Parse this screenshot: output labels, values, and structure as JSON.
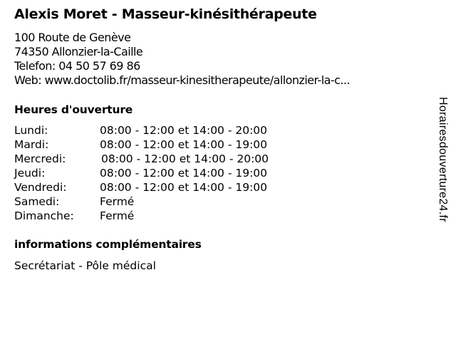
{
  "business": {
    "title": "Alexis Moret - Masseur-kinésithérapeute",
    "address_line1": "100 Route de Genève",
    "address_line2": "74350 Allonzier-la-Caille",
    "phone": "Telefon: 04 50 57 69 86",
    "web": "Web: www.doctolib.fr/masseur-kinesitherapeute/allonzier-la-c..."
  },
  "hours": {
    "heading": "Heures d'ouverture",
    "rows": [
      {
        "day": "Lundi:",
        "time": "08:00 - 12:00 et 14:00 - 20:00"
      },
      {
        "day": "Mardi:",
        "time": "08:00 - 12:00 et 14:00 - 19:00"
      },
      {
        "day": "Mercredi:",
        "time": "08:00 - 12:00 et 14:00 - 20:00"
      },
      {
        "day": "Jeudi:",
        "time": "08:00 - 12:00 et 14:00 - 19:00"
      },
      {
        "day": "Vendredi:",
        "time": "08:00 - 12:00 et 14:00 - 19:00"
      },
      {
        "day": "Samedi:",
        "time": "Fermé"
      },
      {
        "day": "Dimanche:",
        "time": "Fermé"
      }
    ]
  },
  "info": {
    "heading": "informations complémentaires",
    "text": "Secrétariat - Pôle médical"
  },
  "watermark": "Horairesdouverture24.fr"
}
